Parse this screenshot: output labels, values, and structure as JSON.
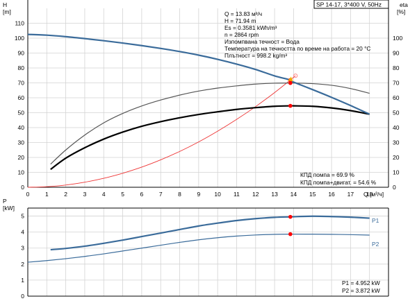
{
  "chart_data": [
    {
      "type": "line",
      "title": "SP 14-17, 3*400 V, 50Hz",
      "xlabel": "Q [м³/ч]",
      "ylabel": "H\n[m]",
      "y2label": "eta\n[%]",
      "xlim": [
        0,
        19
      ],
      "ylim": [
        0,
        120
      ],
      "y2lim": [
        0,
        120
      ],
      "xticks": [
        0,
        1,
        2,
        3,
        4,
        5,
        6,
        7,
        8,
        9,
        10,
        11,
        12,
        13,
        14,
        15,
        16,
        17,
        18
      ],
      "yticks": [
        0,
        10,
        20,
        30,
        40,
        50,
        60,
        70,
        80,
        90,
        100,
        110
      ],
      "y2ticks": [
        0,
        10,
        20,
        30,
        40,
        50,
        60,
        70,
        80,
        90,
        100
      ],
      "grid": true,
      "series": [
        {
          "name": "H",
          "color": "#3a6b9a",
          "width": 2.2,
          "x": [
            0,
            1,
            2,
            3,
            4,
            5,
            6,
            7,
            8,
            9,
            10,
            11,
            12,
            13,
            13.83,
            14,
            15,
            16,
            17,
            18
          ],
          "y": [
            102.5,
            102,
            101,
            99.7,
            98.3,
            96.7,
            95,
            93.1,
            91,
            88.6,
            85.8,
            82.6,
            79,
            74.7,
            71.94,
            70.5,
            65.5,
            60.3,
            54.8,
            49
          ]
        },
        {
          "name": "КПД помпа",
          "color": "#555555",
          "width": 1.2,
          "x": [
            1.2,
            2,
            3,
            4,
            5,
            6,
            7,
            8,
            9,
            10,
            11,
            12,
            13,
            13.83,
            14,
            15,
            16,
            17,
            18
          ],
          "y": [
            15.5,
            25,
            35,
            43.2,
            49.5,
            54.5,
            58.5,
            61.8,
            64.5,
            66.5,
            68,
            69.2,
            69.8,
            69.9,
            69.9,
            69.5,
            68.4,
            66.2,
            63
          ]
        },
        {
          "name": "КПД помпа+двигат.",
          "color": "#000000",
          "width": 2.2,
          "x": [
            1.2,
            2,
            3,
            4,
            5,
            6,
            7,
            8,
            9,
            10,
            11,
            12,
            13,
            13.83,
            14,
            15,
            16,
            17,
            18
          ],
          "y": [
            12,
            19.5,
            26.5,
            32.3,
            37,
            40.9,
            44,
            46.6,
            48.8,
            50.6,
            52.2,
            53.4,
            54.3,
            54.6,
            54.6,
            54.3,
            53.2,
            51.4,
            49
          ]
        },
        {
          "name": "system",
          "color": "#ee3333",
          "width": 0.9,
          "x": [
            0,
            1,
            2,
            3,
            4,
            5,
            6,
            7,
            8,
            9,
            10,
            11,
            12,
            13,
            13.83,
            14.1
          ],
          "y": [
            0,
            0.4,
            1.5,
            3.4,
            6,
            9.4,
            13.5,
            18.4,
            24,
            30.4,
            37.6,
            45.5,
            54.1,
            63.5,
            71.94,
            74.8
          ]
        }
      ],
      "markers": [
        {
          "x": 13.83,
          "y": 71.94,
          "shape": "point",
          "color": "#ff0000"
        },
        {
          "x": 13.83,
          "y": 69.9,
          "shape": "point",
          "color": "#ff0000"
        },
        {
          "x": 13.83,
          "y": 54.6,
          "shape": "point",
          "color": "#ff0000"
        },
        {
          "x": 13.83,
          "y": 71.94,
          "shape": "triangle",
          "color": "#f2c200"
        },
        {
          "x": 14.1,
          "y": 74.8,
          "shape": "open-circle",
          "color": "#ff8888"
        }
      ],
      "annotations": [
        "Q = 13.83 м³/ч",
        "H = 71.94 m",
        "Es = 0.3581 kWh/m³",
        "n = 2864 rpm",
        "Изпомпвана течност = Вода",
        "Температура на течността по време на работа = 20 °C",
        "Плътност = 998.2 kg/m³"
      ],
      "eff_labels": [
        "КПД помпа = 69.9 %",
        "КПД помпа+двигат. = 54.6 %"
      ]
    },
    {
      "type": "line",
      "ylabel": "P\n[kW]",
      "xlim": [
        0,
        19
      ],
      "ylim": [
        0,
        5.5
      ],
      "yticks": [
        0,
        1,
        2,
        3,
        4,
        5
      ],
      "grid": true,
      "series": [
        {
          "name": "P1",
          "color": "#3a6b9a",
          "width": 2.2,
          "x": [
            1.2,
            2,
            3,
            4,
            5,
            6,
            7,
            8,
            9,
            10,
            11,
            12,
            13,
            13.83,
            14,
            15,
            16,
            17,
            18
          ],
          "y": [
            2.9,
            2.98,
            3.12,
            3.3,
            3.5,
            3.72,
            3.94,
            4.16,
            4.38,
            4.56,
            4.72,
            4.84,
            4.92,
            4.952,
            4.96,
            4.99,
            4.97,
            4.93,
            4.87
          ]
        },
        {
          "name": "P2",
          "color": "#3a6b9a",
          "width": 1.2,
          "x": [
            0,
            1,
            2,
            3,
            4,
            5,
            6,
            7,
            8,
            9,
            10,
            11,
            12,
            13,
            13.83,
            14,
            15,
            16,
            17,
            18
          ],
          "y": [
            2.12,
            2.22,
            2.34,
            2.48,
            2.64,
            2.82,
            3.0,
            3.18,
            3.36,
            3.52,
            3.65,
            3.75,
            3.82,
            3.86,
            3.872,
            3.874,
            3.87,
            3.86,
            3.84,
            3.81
          ]
        }
      ],
      "markers": [
        {
          "x": 13.83,
          "y": 4.952,
          "shape": "point",
          "color": "#ff0000"
        },
        {
          "x": 13.83,
          "y": 3.872,
          "shape": "point",
          "color": "#ff0000"
        }
      ],
      "annotations": [
        "P1 = 4.952 kW",
        "P2 = 3.872 kW"
      ]
    }
  ]
}
